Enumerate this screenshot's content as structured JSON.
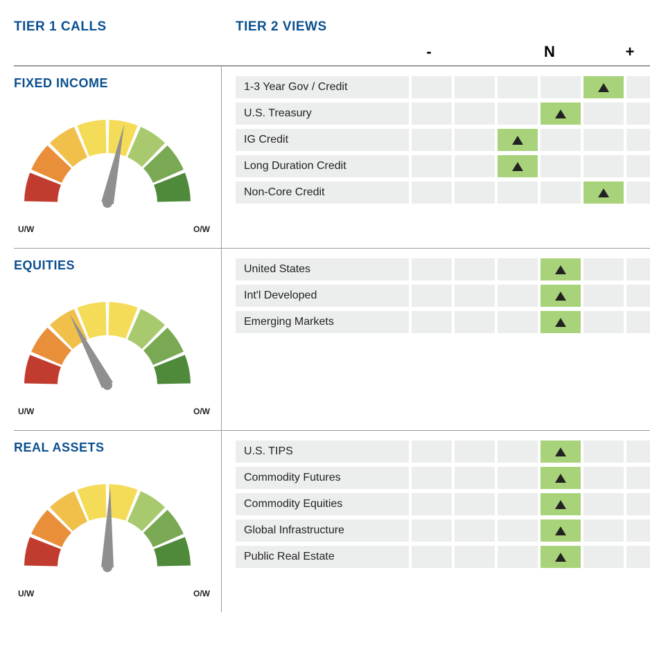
{
  "headings": {
    "tier1": "TIER 1 CALLS",
    "tier2": "TIER 2 VIEWS"
  },
  "heading_color": "#0a4f8f",
  "scale": {
    "labels": [
      "-",
      "",
      "",
      "N",
      "",
      "+"
    ],
    "cell_count": 6,
    "cell_bg": "#eceded",
    "active_bg": "#a9d37a",
    "marker": "triangle-up",
    "marker_color": "#222222"
  },
  "gauge": {
    "type": "gauge",
    "segments": 8,
    "segment_colors": [
      "#c13b2f",
      "#e98f3a",
      "#f0c04b",
      "#f4db58",
      "#f4db58",
      "#a9c96f",
      "#7aa954",
      "#4e8a3a"
    ],
    "segment_gap_color": "#ffffff",
    "needle_color": "#8f8f8f",
    "label_left": "U/W",
    "label_right": "O/W",
    "label_fontsize": 12,
    "angle_range": [
      -90,
      90
    ]
  },
  "sections": [
    {
      "title": "FIXED INCOME",
      "gauge_angle": 12,
      "rows": [
        {
          "label": "1-3 Year Gov / Credit",
          "pos": 4
        },
        {
          "label": "U.S. Treasury",
          "pos": 3
        },
        {
          "label": "IG Credit",
          "pos": 2
        },
        {
          "label": "Long Duration Credit",
          "pos": 2
        },
        {
          "label": "Non-Core Credit",
          "pos": 4
        }
      ]
    },
    {
      "title": "EQUITIES",
      "gauge_angle": -28,
      "rows": [
        {
          "label": "United States",
          "pos": 3
        },
        {
          "label": "Int'l Developed",
          "pos": 3
        },
        {
          "label": "Emerging Markets",
          "pos": 3
        }
      ]
    },
    {
      "title": "REAL ASSETS",
      "gauge_angle": 2,
      "rows": [
        {
          "label": "U.S. TIPS",
          "pos": 3
        },
        {
          "label": "Commodity Futures",
          "pos": 3
        },
        {
          "label": "Commodity Equities",
          "pos": 3
        },
        {
          "label": "Global Infrastructure",
          "pos": 3
        },
        {
          "label": "Public Real Estate",
          "pos": 3
        }
      ]
    }
  ]
}
